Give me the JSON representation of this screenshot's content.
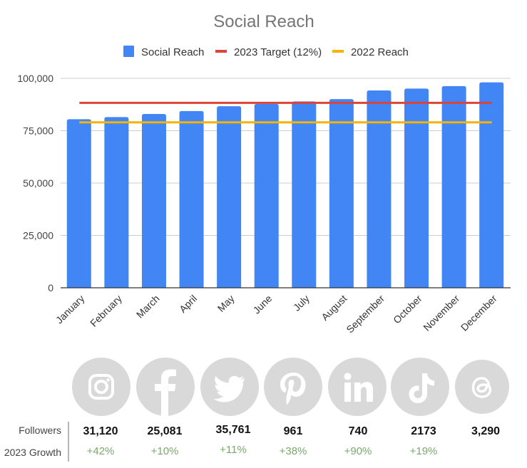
{
  "chart_data": {
    "type": "bar",
    "title": "Social Reach",
    "xlabel": "",
    "ylabel": "",
    "ylim": [
      0,
      100000
    ],
    "y_ticks": [
      0,
      25000,
      50000,
      75000,
      100000
    ],
    "y_tick_labels": [
      "0",
      "25,000",
      "50,000",
      "75,000",
      "100,000"
    ],
    "grid": true,
    "legend_position": "top-center",
    "categories": [
      "January",
      "February",
      "March",
      "April",
      "May",
      "June",
      "July",
      "August",
      "September",
      "October",
      "November",
      "December"
    ],
    "series": [
      {
        "name": "Social Reach",
        "type": "bar",
        "color": "#4285f4",
        "values": [
          80500,
          81500,
          83000,
          84400,
          86700,
          87800,
          89000,
          90100,
          94200,
          95100,
          96300,
          98100
        ]
      },
      {
        "name": "2023 Target (12%)",
        "type": "line",
        "color": "#db4437",
        "values": [
          88300,
          88300,
          88300,
          88300,
          88300,
          88300,
          88300,
          88300,
          88300,
          88300,
          88300,
          88300
        ]
      },
      {
        "name": "2022 Reach",
        "type": "line",
        "color": "#f4b400",
        "values": [
          79000,
          79000,
          79000,
          79000,
          79000,
          79000,
          79000,
          79000,
          79000,
          79000,
          79000,
          79000
        ]
      }
    ]
  },
  "stats": {
    "followers_label": "Followers",
    "growth_label": "2023 Growth",
    "platforms": [
      {
        "name": "Instagram",
        "icon": "instagram-icon",
        "followers": "31,120",
        "growth": "+42%"
      },
      {
        "name": "Facebook",
        "icon": "facebook-icon",
        "followers": "25,081",
        "growth": "+10%"
      },
      {
        "name": "Twitter",
        "icon": "twitter-icon",
        "followers": "35,761",
        "growth": "+11%"
      },
      {
        "name": "Pinterest",
        "icon": "pinterest-icon",
        "followers": "961",
        "growth": "+38%"
      },
      {
        "name": "LinkedIn",
        "icon": "linkedin-icon",
        "followers": "740",
        "growth": "+90%"
      },
      {
        "name": "TikTok",
        "icon": "tiktok-icon",
        "followers": "2173",
        "growth": "+19%"
      },
      {
        "name": "Threads",
        "icon": "threads-icon",
        "followers": "3,290",
        "growth": ""
      }
    ]
  },
  "colors": {
    "icon_circle": "#d9d9d9",
    "growth_text": "#7aa86c",
    "gridline": "#cccccc",
    "axis": "#333333"
  }
}
